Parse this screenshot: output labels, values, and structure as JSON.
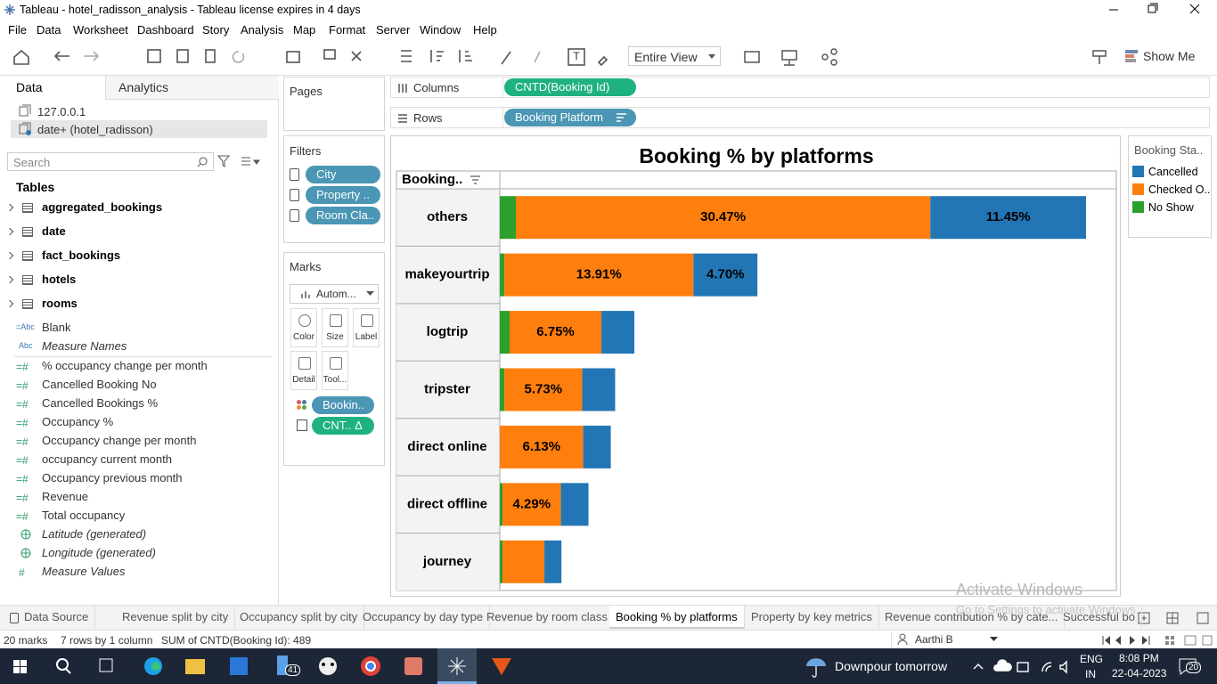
{
  "window": {
    "title": "Tableau - hotel_radisson_analysis - Tableau license expires in 4 days"
  },
  "menu": [
    "File",
    "Data",
    "Worksheet",
    "Dashboard",
    "Story",
    "Analysis",
    "Map",
    "Format",
    "Server",
    "Window",
    "Help"
  ],
  "toolbar": {
    "fit": "Entire View",
    "show_me": "Show Me"
  },
  "data_pane": {
    "tabs": [
      "Data",
      "Analytics"
    ],
    "connections": [
      "127.0.0.1",
      "date+ (hotel_radisson)"
    ],
    "search_placeholder": "Search",
    "tables_heading": "Tables",
    "tables": [
      "aggregated_bookings",
      "date",
      "fact_bookings",
      "hotels",
      "rooms"
    ],
    "fields": [
      {
        "icon": "=Abc",
        "name": "Blank"
      },
      {
        "icon": "Abc",
        "name": "Measure Names",
        "italic": true
      },
      {
        "icon": "=#",
        "name": "% occupancy change per month"
      },
      {
        "icon": "=#",
        "name": "Cancelled Booking No"
      },
      {
        "icon": "=#",
        "name": "Cancelled Bookings %"
      },
      {
        "icon": "=#",
        "name": "Occupancy %"
      },
      {
        "icon": "=#",
        "name": "Occupancy change per month"
      },
      {
        "icon": "=#",
        "name": "occupancy current month"
      },
      {
        "icon": "=#",
        "name": "Occupancy previous month"
      },
      {
        "icon": "=#",
        "name": "Revenue"
      },
      {
        "icon": "=#",
        "name": "Total occupancy"
      },
      {
        "icon": "geo",
        "name": "Latitude (generated)",
        "italic": true
      },
      {
        "icon": "geo",
        "name": "Longitude (generated)",
        "italic": true
      },
      {
        "icon": "#",
        "name": "Measure Values",
        "italic": true
      }
    ]
  },
  "cards": {
    "pages": "Pages",
    "filters": {
      "title": "Filters",
      "pills": [
        "City",
        "Property ..",
        "Room Cla.."
      ]
    },
    "marks": {
      "title": "Marks",
      "type": "Autom...",
      "buttons": [
        "Color",
        "Size",
        "Label",
        "Detail",
        "Tool..."
      ],
      "pills": [
        "Bookin..",
        "CNT..  Δ"
      ]
    }
  },
  "shelves": {
    "columns": {
      "label": "Columns",
      "pill": "CNTD(Booking Id)"
    },
    "rows": {
      "label": "Rows",
      "pill": "Booking Platform"
    }
  },
  "chart_data": {
    "type": "stacked-bar-horizontal",
    "title": "Booking % by platforms",
    "row_header": "Booking..",
    "legend_title": "Booking Sta..",
    "categories": [
      "others",
      "makeyourtrip",
      "logtrip",
      "tripster",
      "direct online",
      "direct offline",
      "journey"
    ],
    "series": [
      {
        "name": "Cancelled",
        "color": "#2376b5",
        "values": [
          11.45,
          4.7,
          2.42,
          2.42,
          2.03,
          2.03,
          1.25
        ],
        "value_labels": [
          "11.45%",
          "4.70%",
          null,
          null,
          null,
          null,
          null
        ]
      },
      {
        "name": "Checked O..",
        "color": "#ff7f0e",
        "values": [
          30.47,
          13.91,
          6.75,
          5.73,
          6.13,
          4.29,
          3.08
        ],
        "value_labels": [
          "30.47%",
          "13.91%",
          "6.75%",
          "5.73%",
          "6.13%",
          "4.29%",
          null
        ]
      },
      {
        "name": "No Show",
        "color": "#2ca02c",
        "values": [
          1.18,
          0.33,
          0.72,
          0.33,
          null,
          0.2,
          0.2
        ]
      }
    ]
  },
  "sheet_tabs": {
    "items": [
      "Data Source",
      "Revenue split by city",
      "Occupancy split by city",
      "Occupancy by day type",
      "Revenue by room class",
      "Booking % by platforms",
      "Property by key metrics",
      "Revenue contribution % by cate...",
      "Successful bo"
    ],
    "active": 5
  },
  "status_bar": {
    "marks": "20 marks",
    "dims": "7 rows by 1 column",
    "sum": "SUM of CNTD(Booking Id): 489",
    "user": "Aarthi B"
  },
  "watermark": [
    "Activate Windows",
    "Go to Settings to activate Windows."
  ],
  "taskbar": {
    "weather": "Downpour tomorrow",
    "lang": [
      "ENG",
      "IN"
    ],
    "time": "8:08 PM",
    "date": "22-04-2023",
    "badges": [
      "41",
      "20"
    ]
  }
}
